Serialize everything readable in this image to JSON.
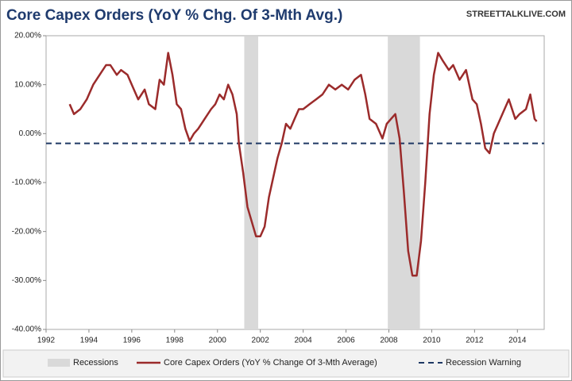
{
  "chart_data": {
    "type": "line",
    "title": "Core Capex Orders (YoY % Chg. Of 3-Mth Avg.)",
    "source": "STREETTALKLIVE.COM",
    "x": [
      1993.1,
      1993.3,
      1993.6,
      1993.9,
      1994.2,
      1994.5,
      1994.8,
      1995.0,
      1995.3,
      1995.5,
      1995.8,
      1996.0,
      1996.3,
      1996.6,
      1996.8,
      1997.1,
      1997.3,
      1997.5,
      1997.7,
      1997.9,
      1998.1,
      1998.3,
      1998.5,
      1998.7,
      1998.9,
      1999.1,
      1999.4,
      1999.7,
      1999.9,
      2000.1,
      2000.3,
      2000.5,
      2000.7,
      2000.9,
      2001.0,
      2001.2,
      2001.4,
      2001.6,
      2001.8,
      2002.0,
      2002.2,
      2002.4,
      2002.6,
      2002.8,
      2003.0,
      2003.2,
      2003.4,
      2003.6,
      2003.8,
      2004.0,
      2004.3,
      2004.6,
      2004.9,
      2005.2,
      2005.5,
      2005.8,
      2006.1,
      2006.4,
      2006.7,
      2006.9,
      2007.1,
      2007.4,
      2007.7,
      2007.9,
      2008.1,
      2008.3,
      2008.5,
      2008.7,
      2008.9,
      2009.1,
      2009.3,
      2009.5,
      2009.7,
      2009.9,
      2010.1,
      2010.3,
      2010.5,
      2010.8,
      2011.0,
      2011.3,
      2011.6,
      2011.9,
      2012.1,
      2012.3,
      2012.5,
      2012.7,
      2012.9,
      2013.1,
      2013.4,
      2013.6,
      2013.9,
      2014.1,
      2014.4,
      2014.6,
      2014.8,
      2014.9
    ],
    "series": [
      {
        "name": "Core Capex Orders (YoY % Change Of 3-Mth Average)",
        "color": "#9b2b2b",
        "values": [
          6,
          4,
          5,
          7,
          10,
          12,
          14,
          14,
          12,
          13,
          12,
          10,
          7,
          9,
          6,
          5,
          11,
          10,
          16.5,
          12,
          6,
          5,
          1,
          -1.5,
          0,
          1,
          3,
          5,
          6,
          8,
          7,
          10,
          8,
          4,
          -2,
          -8,
          -15,
          -18,
          -21,
          -21,
          -19,
          -13,
          -9,
          -5,
          -2,
          2,
          1,
          3,
          5,
          5,
          6,
          7,
          8,
          10,
          9,
          10,
          9,
          11,
          12,
          8,
          3,
          2,
          -1,
          2,
          3,
          4,
          -1,
          -12,
          -24,
          -29,
          -29,
          -22,
          -10,
          4,
          12,
          16.5,
          15,
          13,
          14,
          11,
          13,
          7,
          6,
          2,
          -3,
          -4,
          0,
          2,
          5,
          7,
          3,
          4,
          5,
          8,
          3,
          2.5
        ]
      }
    ],
    "recessions": {
      "name": "Recessions",
      "color": "#d9d9d9",
      "spans": [
        [
          2001.25,
          2001.9
        ],
        [
          2007.95,
          2009.45
        ]
      ]
    },
    "warning": {
      "name": "Recession Warning",
      "value": -2,
      "color": "#1f3864"
    },
    "xlim": [
      1992,
      2015.25
    ],
    "xticks": [
      1992,
      1994,
      1996,
      1998,
      2000,
      2002,
      2004,
      2006,
      2008,
      2010,
      2012,
      2014
    ],
    "ylim": [
      -40,
      20
    ],
    "yticks": [
      {
        "value": -40,
        "label": "-40.00%"
      },
      {
        "value": -30,
        "label": "-30.00%"
      },
      {
        "value": -20,
        "label": "-20.00%"
      },
      {
        "value": -10,
        "label": "-10.00%"
      },
      {
        "value": 0,
        "label": "0.00%"
      },
      {
        "value": 10,
        "label": "10.00%"
      },
      {
        "value": 20,
        "label": "20.00%"
      }
    ],
    "grid": false
  }
}
